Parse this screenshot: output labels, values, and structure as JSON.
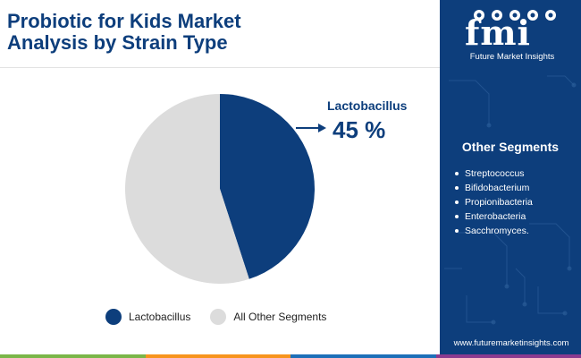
{
  "header": {
    "title_line1": "Probiotic for Kids Market",
    "title_line2": "Analysis by Strain Type"
  },
  "brand": {
    "logo_text": "fmi",
    "tagline": "Future Market Insights",
    "url": "www.futuremarketinsights.com"
  },
  "sidebar": {
    "title": "Other Segments",
    "items": [
      "Streptococcus",
      "Bifidobacterium",
      "Propionibacteria",
      "Enterobacteria",
      "Sacchromyces."
    ]
  },
  "callout": {
    "label": "Lactobacillus",
    "value": "45 %"
  },
  "colors": {
    "primary": "#0d3e7c",
    "secondary": "#dcdcdc",
    "bottom_bar": [
      "#7ab648",
      "#f7941d",
      "#1d6fb8",
      "#8b3a8f"
    ]
  },
  "chart_data": {
    "type": "pie",
    "title": "Probiotic for Kids Market Analysis by Strain Type",
    "categories": [
      "Lactobacillus",
      "All Other Segments"
    ],
    "values": [
      45,
      55
    ],
    "colors": [
      "#0d3e7c",
      "#dcdcdc"
    ],
    "start_angle_deg": 0,
    "direction": "clockwise",
    "legend_position": "bottom"
  }
}
